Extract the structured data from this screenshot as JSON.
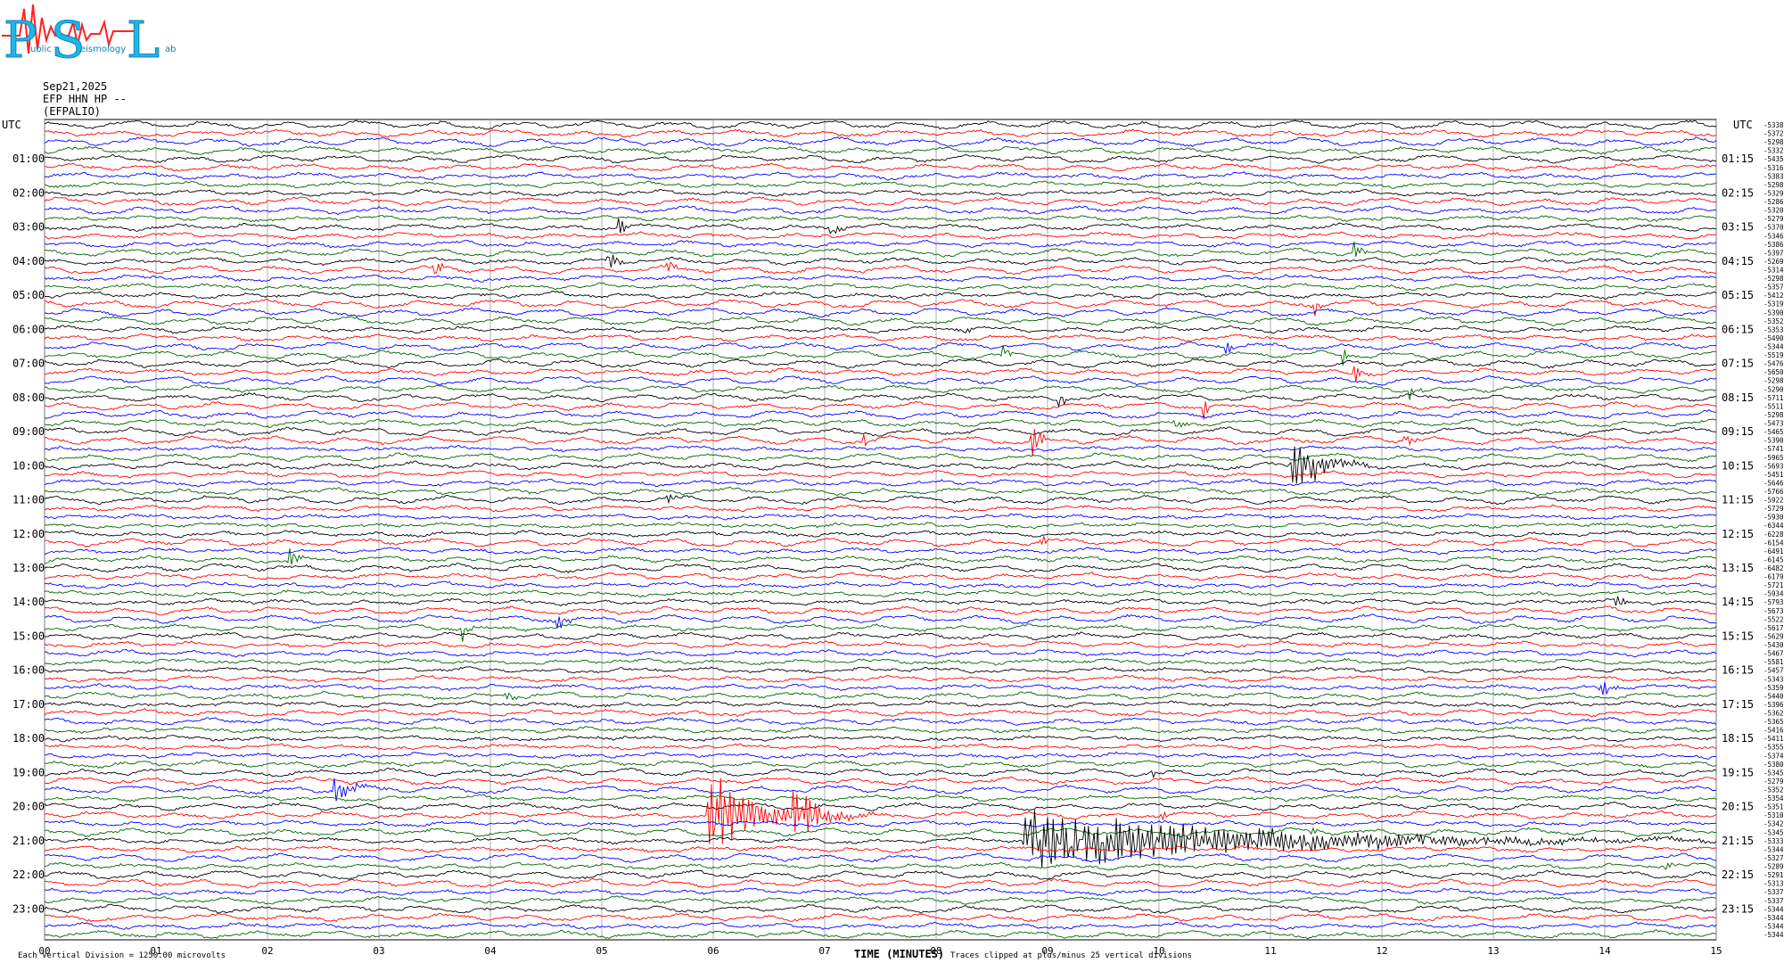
{
  "logo": {
    "letters": [
      "P",
      "S",
      "L"
    ],
    "words": [
      "ublic",
      "eismology",
      "ab"
    ]
  },
  "header": {
    "date": "Sep21,2025",
    "station": "EFP HHN HP --",
    "site": "(EFPALIO)"
  },
  "left_axis_label": "UTC",
  "right_axis_label": "UTC",
  "hour_labels_left": [
    "01:00",
    "02:00",
    "03:00",
    "04:00",
    "05:00",
    "06:00",
    "07:00",
    "08:00",
    "09:00",
    "10:00",
    "11:00",
    "12:00",
    "13:00",
    "14:00",
    "15:00",
    "16:00",
    "17:00",
    "18:00",
    "19:00",
    "20:00",
    "21:00",
    "22:00",
    "23:00"
  ],
  "hour_labels_right": [
    "01:15",
    "02:15",
    "03:15",
    "04:15",
    "05:15",
    "06:15",
    "07:15",
    "08:15",
    "09:15",
    "10:15",
    "11:15",
    "12:15",
    "13:15",
    "14:15",
    "15:15",
    "16:15",
    "17:15",
    "18:15",
    "19:15",
    "20:15",
    "21:15",
    "22:15",
    "23:15"
  ],
  "footer": {
    "scale": "Each Vertical Division = 1250.00 microvolts",
    "xlabel": "TIME (MINUTES)",
    "clip_note": "Traces clipped at plus/minus 25 vertical divisions"
  },
  "chart_data": {
    "type": "line",
    "subtype": "helicorder",
    "xlabel": "TIME (MINUTES)",
    "x_ticks": [
      "00",
      "01",
      "02",
      "03",
      "04",
      "05",
      "06",
      "07",
      "08",
      "09",
      "10",
      "11",
      "12",
      "13",
      "14",
      "15"
    ],
    "xlim": [
      0,
      15
    ],
    "traces_per_hour": 4,
    "total_traces": 96,
    "trace_colors": [
      "#000000",
      "#ff0000",
      "#0000ff",
      "#006400"
    ],
    "trace_offsets": [
      "-5338",
      "-5372",
      "-5298",
      "-5332",
      "-5435",
      "-5316",
      "-5383",
      "-5298",
      "-5329",
      "-5286",
      "-5320",
      "-5279",
      "-5370",
      "-5346",
      "-5386",
      "-5397",
      "-5269",
      "-5314",
      "-5298",
      "-5357",
      "-5412",
      "-5319",
      "-5390",
      "-5352",
      "-5353",
      "-5490",
      "-5344",
      "-5519",
      "-5476",
      "-5650",
      "-5298",
      "-5290",
      "-5711",
      "-5511",
      "-5298",
      "-5473",
      "-5465",
      "-5390",
      "-5741",
      "-5965",
      "-5693",
      "-5451",
      "-5646",
      "-5766",
      "-5922",
      "-5729",
      "-5930",
      "-6344",
      "-6228",
      "-6154",
      "-6491",
      "-6145",
      "-6482",
      "-6179",
      "-5721",
      "-5934",
      "-5793",
      "-5673",
      "-5522",
      "-5617",
      "-5629",
      "-5430",
      "-5467",
      "-5581",
      "-5457",
      "-5343",
      "-5359",
      "-5440",
      "-5396",
      "-5362",
      "-5365",
      "-5416",
      "-5411",
      "-5355",
      "-5374",
      "-5380",
      "-5345",
      "-5279",
      "-5352",
      "-5354",
      "-5351",
      "-5310",
      "-5342",
      "-5345",
      "-5333",
      "-5344",
      "-5327",
      "-5289",
      "-5291",
      "-5313",
      "-5337",
      "-5337",
      "-5344",
      "-5344",
      "-5344",
      "-5344"
    ],
    "events": [
      {
        "trace": 12,
        "minute": 5.15,
        "amp": 22,
        "dur": 0.15
      },
      {
        "trace": 12,
        "minute": 7.05,
        "amp": 9,
        "dur": 0.2
      },
      {
        "trace": 15,
        "minute": 11.75,
        "amp": 14,
        "dur": 0.15
      },
      {
        "trace": 16,
        "minute": 5.05,
        "amp": 16,
        "dur": 0.2
      },
      {
        "trace": 17,
        "minute": 3.5,
        "amp": 15,
        "dur": 0.15
      },
      {
        "trace": 17,
        "minute": 5.6,
        "amp": 14,
        "dur": 0.15
      },
      {
        "trace": 21,
        "minute": 11.4,
        "amp": 10,
        "dur": 0.15
      },
      {
        "trace": 24,
        "minute": 8.25,
        "amp": 8,
        "dur": 0.1
      },
      {
        "trace": 27,
        "minute": 8.6,
        "amp": 18,
        "dur": 0.1
      },
      {
        "trace": 26,
        "minute": 10.6,
        "amp": 10,
        "dur": 0.1
      },
      {
        "trace": 27,
        "minute": 11.65,
        "amp": 10,
        "dur": 0.1
      },
      {
        "trace": 29,
        "minute": 11.75,
        "amp": 14,
        "dur": 0.2
      },
      {
        "trace": 31,
        "minute": 12.25,
        "amp": 12,
        "dur": 0.15
      },
      {
        "trace": 32,
        "minute": 9.1,
        "amp": 14,
        "dur": 0.12
      },
      {
        "trace": 33,
        "minute": 10.4,
        "amp": 14,
        "dur": 0.1
      },
      {
        "trace": 35,
        "minute": 10.15,
        "amp": 16,
        "dur": 0.1
      },
      {
        "trace": 37,
        "minute": 7.35,
        "amp": 11,
        "dur": 0.1
      },
      {
        "trace": 37,
        "minute": 8.85,
        "amp": 24,
        "dur": 0.2
      },
      {
        "trace": 37,
        "minute": 12.2,
        "amp": 12,
        "dur": 0.2
      },
      {
        "trace": 40,
        "minute": 11.2,
        "amp": 40,
        "dur": 0.6
      },
      {
        "trace": 44,
        "minute": 5.6,
        "amp": 8,
        "dur": 0.1
      },
      {
        "trace": 49,
        "minute": 8.95,
        "amp": 9,
        "dur": 0.1
      },
      {
        "trace": 51,
        "minute": 2.2,
        "amp": 16,
        "dur": 0.15
      },
      {
        "trace": 56,
        "minute": 14.1,
        "amp": 12,
        "dur": 0.15
      },
      {
        "trace": 58,
        "minute": 4.55,
        "amp": 26,
        "dur": 0.2
      },
      {
        "trace": 59,
        "minute": 3.75,
        "amp": 14,
        "dur": 0.15
      },
      {
        "trace": 66,
        "minute": 13.95,
        "amp": 16,
        "dur": 0.2
      },
      {
        "trace": 67,
        "minute": 4.15,
        "amp": 11,
        "dur": 0.12
      },
      {
        "trace": 78,
        "minute": 2.6,
        "amp": 14,
        "dur": 0.5
      },
      {
        "trace": 76,
        "minute": 9.95,
        "amp": 9,
        "dur": 0.1
      },
      {
        "trace": 81,
        "minute": 5.95,
        "amp": 50,
        "dur": 1.2
      },
      {
        "trace": 81,
        "minute": 6.72,
        "amp": 34,
        "dur": 0.5
      },
      {
        "trace": 81,
        "minute": 10.0,
        "amp": 10,
        "dur": 0.15
      },
      {
        "trace": 83,
        "minute": 11.35,
        "amp": 10,
        "dur": 0.12
      },
      {
        "trace": 84,
        "minute": 8.8,
        "amp": 34,
        "dur": 6.0
      },
      {
        "trace": 87,
        "minute": 14.55,
        "amp": 7,
        "dur": 0.1
      }
    ]
  }
}
